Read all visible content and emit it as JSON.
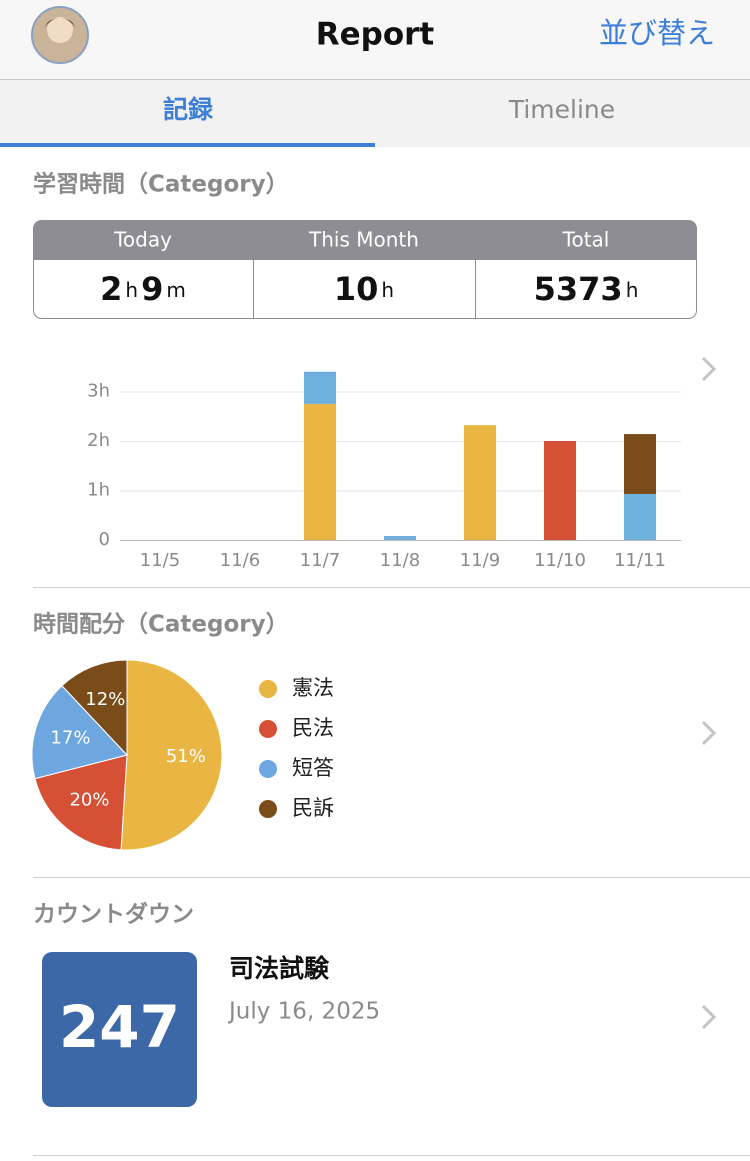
{
  "header": {
    "title": "Report",
    "sort_button": "並び替え"
  },
  "tabs": [
    {
      "label": "記録",
      "active": true
    },
    {
      "label": "Timeline",
      "active": false
    }
  ],
  "study_time": {
    "heading": "学習時間（Category）",
    "columns": [
      {
        "label": "Today",
        "parts": [
          2,
          "h",
          9,
          "m"
        ]
      },
      {
        "label": "This Month",
        "parts": [
          10,
          "h"
        ]
      },
      {
        "label": "Total",
        "parts": [
          5373,
          "h"
        ]
      }
    ]
  },
  "bar_chart": {
    "chart_data": {
      "type": "bar",
      "stacked": true,
      "categories": [
        "11/5",
        "11/6",
        "11/7",
        "11/8",
        "11/9",
        "11/10",
        "11/11"
      ],
      "series": [
        {
          "color": "#e9b543",
          "values": [
            0,
            0,
            2.75,
            0,
            2.32,
            0,
            0
          ]
        },
        {
          "color": "#d65035",
          "values": [
            0,
            0,
            0,
            0,
            0,
            2.0,
            0
          ]
        },
        {
          "color": "#6eb0de",
          "values": [
            0,
            0,
            0.65,
            0.08,
            0,
            0,
            0.93
          ]
        },
        {
          "color": "#7a4c19",
          "values": [
            0,
            0,
            0,
            0,
            0,
            0,
            1.21
          ]
        }
      ],
      "ylim": [
        0,
        3.5
      ],
      "yticks": [
        0,
        {
          "value": 1,
          "label": "1h"
        },
        {
          "value": 2,
          "label": "2h"
        },
        {
          "value": 3,
          "label": "3h"
        }
      ],
      "grid": true
    }
  },
  "distribution": {
    "heading": "時間配分（Category）",
    "chart_data": {
      "type": "pie",
      "categories": [
        "憲法",
        "民法",
        "短答",
        "民訴"
      ],
      "values": [
        51,
        20,
        17,
        12
      ],
      "value_labels": [
        "51%",
        "20%",
        "17%",
        "12%"
      ],
      "colors": [
        "#e9b543",
        "#d65035",
        "#6ea6e0",
        "#7a4c19"
      ]
    }
  },
  "countdown": {
    "heading": "カウントダウン",
    "days": 247,
    "title": "司法試験",
    "date": "July 16, 2025"
  }
}
